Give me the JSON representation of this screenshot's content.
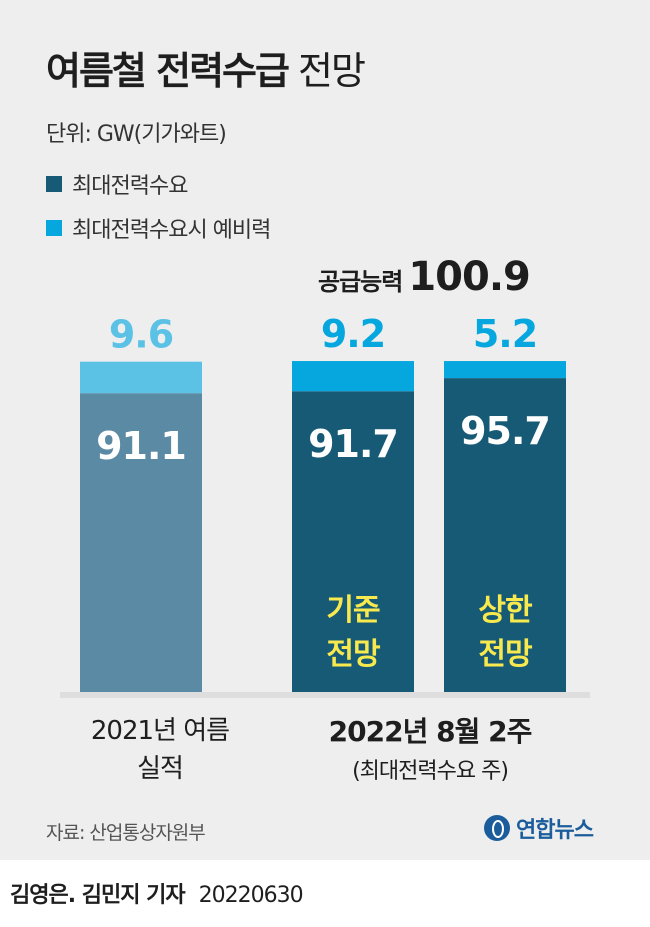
{
  "title_bold": "여름철 전력수급",
  "title_normal": "전망",
  "unit": "단위: GW(기가와트)",
  "supply": {
    "label": "공급능력",
    "value": "100.9"
  },
  "colors": {
    "demand_actual": "#5b8aa4",
    "reserve_actual": "#5bc2e6",
    "demand_forecast": "#175a76",
    "reserve_forecast": "#05a7de",
    "scenario_text": "#f7e94e"
  },
  "chart_data": {
    "type": "bar",
    "stacked": true,
    "categories": [
      "2021년 여름 실적",
      "기준 전망",
      "상한 전망"
    ],
    "series": [
      {
        "name": "최대전력수요",
        "values": [
          91.1,
          91.7,
          95.7
        ]
      },
      {
        "name": "최대전력수요시 예비력",
        "values": [
          9.6,
          9.2,
          5.2
        ]
      }
    ],
    "bar_inner_labels": [
      "",
      "기준 전망",
      "상한 전망"
    ],
    "x_groups": [
      {
        "line1": "2021년 여름",
        "line2": "실적"
      },
      {
        "line1": "2022년 8월 2주",
        "line2": "(최대전력수요 주)"
      }
    ],
    "ylim": [
      0,
      101
    ],
    "legend": "top-left"
  },
  "source": "자료: 산업통상자원부",
  "logo": "연합뉴스",
  "byline": {
    "names": "김영은. 김민지 기자",
    "date": "20220630"
  }
}
